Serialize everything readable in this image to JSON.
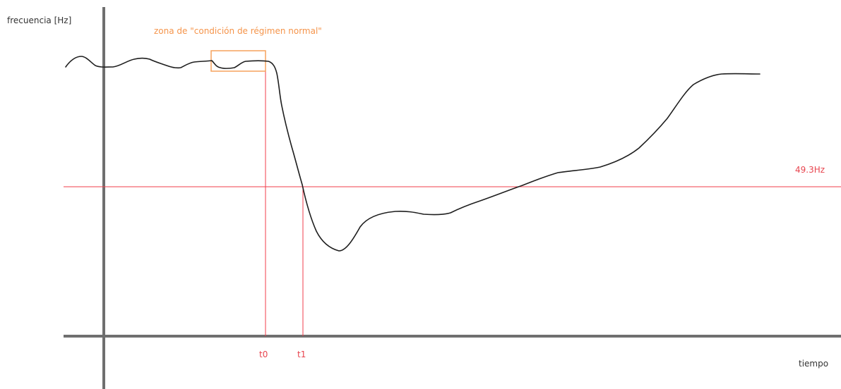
{
  "diagram": {
    "y_axis_label": "frecuencia [Hz]",
    "x_axis_label": "tiempo",
    "zone_label": "zona de \"condición de régimen normal\"",
    "threshold_label": "49.3Hz",
    "t0_label": "t0",
    "t1_label": "t1",
    "colors": {
      "axis": "#6f6f6f",
      "curve": "#1e1e1e",
      "threshold": "#f03c4b",
      "zone": "#f5a25d"
    }
  }
}
